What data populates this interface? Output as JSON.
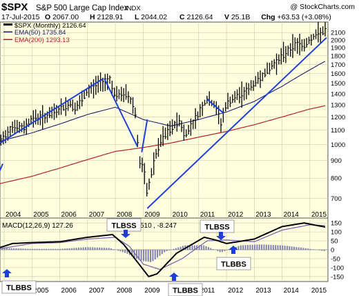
{
  "header": {
    "symbol": "$SPX",
    "name": "S&P 500 Large Cap Index",
    "exchange": "INDX",
    "watermark": "@ StockCharts.com",
    "date": "17-Jul-2015",
    "quote": [
      {
        "key": "O",
        "value": "2067.00"
      },
      {
        "key": "H",
        "value": "2128.91"
      },
      {
        "key": "L",
        "value": "2044.02"
      },
      {
        "key": "C",
        "value": "2126.64"
      },
      {
        "key": "V",
        "value": "25.1B"
      },
      {
        "key": "Chg",
        "value": "+63.53 (+3.08%)"
      }
    ]
  },
  "legend": {
    "price": "$SPX (Monthly) 2126.64",
    "ema50": "EMA(50) 1735.84",
    "ema200": "EMA(200) 1293.13"
  },
  "macd_legend": {
    "label": "MACD(12,26,9) 127.26",
    "signal_fragment": "510",
    "hist": ", -8.247"
  },
  "annotations": {
    "tlbss_1": "TLBSS",
    "tlbss_2": "TLBSS",
    "tlbbs_1": "TLBBS",
    "tlbbs_2": "TLBBS",
    "tlbbs_3": "TLBBS"
  },
  "colors": {
    "panel_bg": "#ffffe0",
    "grid": "#c9c9a8",
    "price": "#000000",
    "ema50": "#1c1c6e",
    "ema200": "#b22222",
    "trendline": "#1d3fd6",
    "macd": "#000000",
    "signal": "#7a5cb0",
    "hist": "#8080b0",
    "arrow": "#1d3fd6"
  },
  "chart_data": [
    {
      "type": "line",
      "title": "$SPX S&P 500 Large Cap Index",
      "y_scale": "log",
      "ylim": [
        620,
        2230
      ],
      "xlim": [
        2003.85,
        2015.65
      ],
      "x_ticks": [
        "2004",
        "2005",
        "2006",
        "2007",
        "2008",
        "2009",
        "2010",
        "2011",
        "2012",
        "2013",
        "2014",
        "2015"
      ],
      "y_ticks": [
        700,
        800,
        900,
        1000,
        1100,
        1200,
        1300,
        1400,
        1500,
        1600,
        1700,
        1800,
        1900,
        2000,
        2100
      ],
      "series": [
        {
          "name": "$SPX (Monthly)",
          "x": [
            2003.8,
            2004.3,
            2004.7,
            2005.0,
            2005.5,
            2005.9,
            2006.4,
            2006.6,
            2007.0,
            2007.4,
            2007.8,
            2008.0,
            2008.4,
            2008.7,
            2008.85,
            2009.0,
            2009.15,
            2009.4,
            2009.7,
            2010.0,
            2010.3,
            2010.5,
            2010.9,
            2011.3,
            2011.6,
            2011.8,
            2012.0,
            2012.4,
            2012.8,
            2013.0,
            2013.5,
            2014.0,
            2014.5,
            2014.8,
            2015.0,
            2015.3,
            2015.55
          ],
          "values": [
            1000,
            1130,
            1110,
            1190,
            1200,
            1250,
            1310,
            1270,
            1420,
            1500,
            1540,
            1380,
            1400,
            1280,
            900,
            860,
            720,
            900,
            1050,
            1110,
            1180,
            1060,
            1190,
            1350,
            1290,
            1150,
            1310,
            1380,
            1440,
            1500,
            1640,
            1800,
            1950,
            1930,
            2010,
            2080,
            2126
          ]
        },
        {
          "name": "EMA(50)",
          "x": [
            2003.8,
            2005,
            2006,
            2007,
            2008,
            2009,
            2010,
            2011,
            2012,
            2013,
            2014,
            2015,
            2015.55
          ],
          "values": [
            1020,
            1080,
            1145,
            1220,
            1280,
            1180,
            1130,
            1180,
            1240,
            1330,
            1470,
            1640,
            1736
          ]
        },
        {
          "name": "EMA(200)",
          "x": [
            2003.8,
            2005,
            2006,
            2007,
            2008,
            2009,
            2010,
            2011,
            2012,
            2013,
            2014,
            2015,
            2015.55
          ],
          "values": [
            770,
            810,
            855,
            905,
            955,
            980,
            1010,
            1050,
            1090,
            1140,
            1200,
            1265,
            1293
          ]
        }
      ]
    },
    {
      "type": "line",
      "title": "MACD(12,26,9)",
      "ylim": [
        -170,
        170
      ],
      "x_ticks": [
        "2005",
        "2006",
        "2007",
        "2008",
        "2009",
        "2010",
        "2011",
        "2012",
        "2013",
        "2014",
        "2015"
      ],
      "y_ticks": [
        150,
        100,
        50,
        0,
        -50,
        -100,
        -150
      ],
      "series": [
        {
          "name": "MACD",
          "x": [
            2003.8,
            2004.3,
            2005,
            2006,
            2007,
            2007.9,
            2008.3,
            2008.8,
            2009.2,
            2009.5,
            2010.2,
            2011.2,
            2011.6,
            2012.0,
            2013,
            2014,
            2014.8,
            2015.55
          ],
          "values": [
            10,
            35,
            40,
            45,
            70,
            85,
            30,
            -70,
            -150,
            -135,
            -20,
            70,
            55,
            35,
            60,
            130,
            150,
            127
          ]
        },
        {
          "name": "Signal",
          "x": [
            2003.8,
            2005,
            2006,
            2007,
            2008,
            2008.5,
            2009.0,
            2009.6,
            2010.4,
            2011.3,
            2012.0,
            2013,
            2014,
            2015,
            2015.55
          ],
          "values": [
            5,
            35,
            40,
            60,
            70,
            20,
            -80,
            -110,
            -50,
            50,
            55,
            45,
            110,
            140,
            135
          ]
        },
        {
          "name": "Histogram",
          "x": [
            2004,
            2005,
            2006,
            2007,
            2007.8,
            2008.4,
            2008.9,
            2009.3,
            2009.8,
            2010.5,
            2011.2,
            2011.8,
            2012.5,
            2013.2,
            2014,
            2014.8,
            2015.55
          ],
          "values": [
            10,
            5,
            5,
            15,
            10,
            -20,
            -60,
            -70,
            -10,
            25,
            25,
            -15,
            25,
            30,
            25,
            10,
            -8
          ]
        }
      ]
    }
  ]
}
